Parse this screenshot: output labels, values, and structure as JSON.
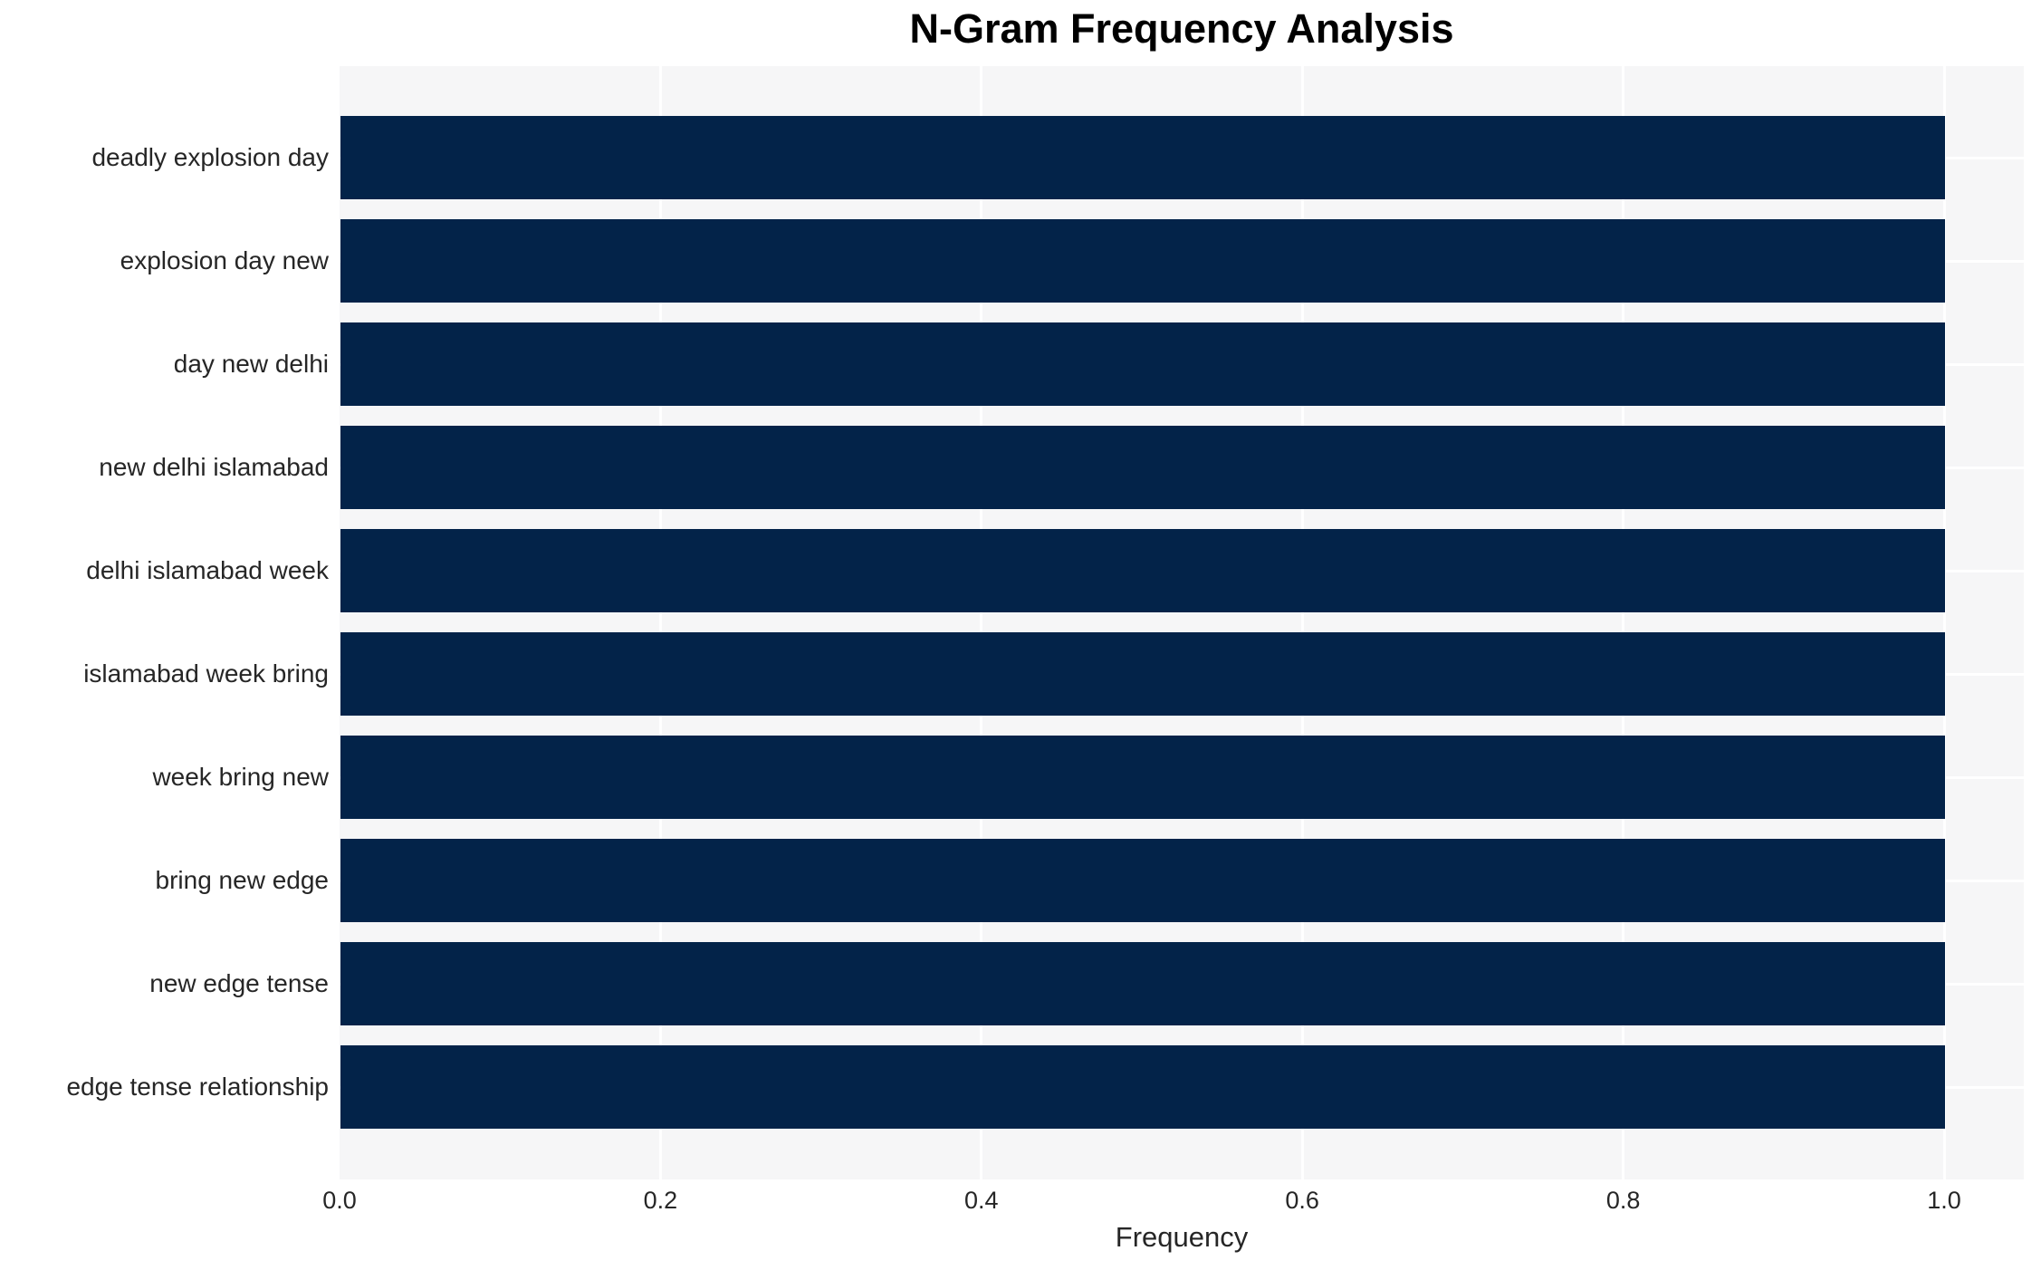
{
  "title": "N-Gram Frequency Analysis",
  "chart_data": {
    "type": "bar",
    "orientation": "horizontal",
    "title": "N-Gram Frequency Analysis",
    "xlabel": "Frequency",
    "ylabel": "",
    "categories": [
      "deadly explosion day",
      "explosion day new",
      "day new delhi",
      "new delhi islamabad",
      "delhi islamabad week",
      "islamabad week bring",
      "week bring new",
      "bring new edge",
      "new edge tense",
      "edge tense relationship"
    ],
    "values": [
      1.0,
      1.0,
      1.0,
      1.0,
      1.0,
      1.0,
      1.0,
      1.0,
      1.0,
      1.0
    ],
    "xticks": [
      0.0,
      0.2,
      0.4,
      0.6,
      0.8,
      1.0
    ],
    "xlim": [
      0,
      1.05
    ],
    "grid": true,
    "legend": false,
    "colors": {
      "bar": "#032349",
      "plot_bg": "#f6f6f7",
      "grid": "#ffffff",
      "axis_text": "#262626",
      "title_text": "#000000",
      "figure_bg": "#ffffff"
    }
  }
}
